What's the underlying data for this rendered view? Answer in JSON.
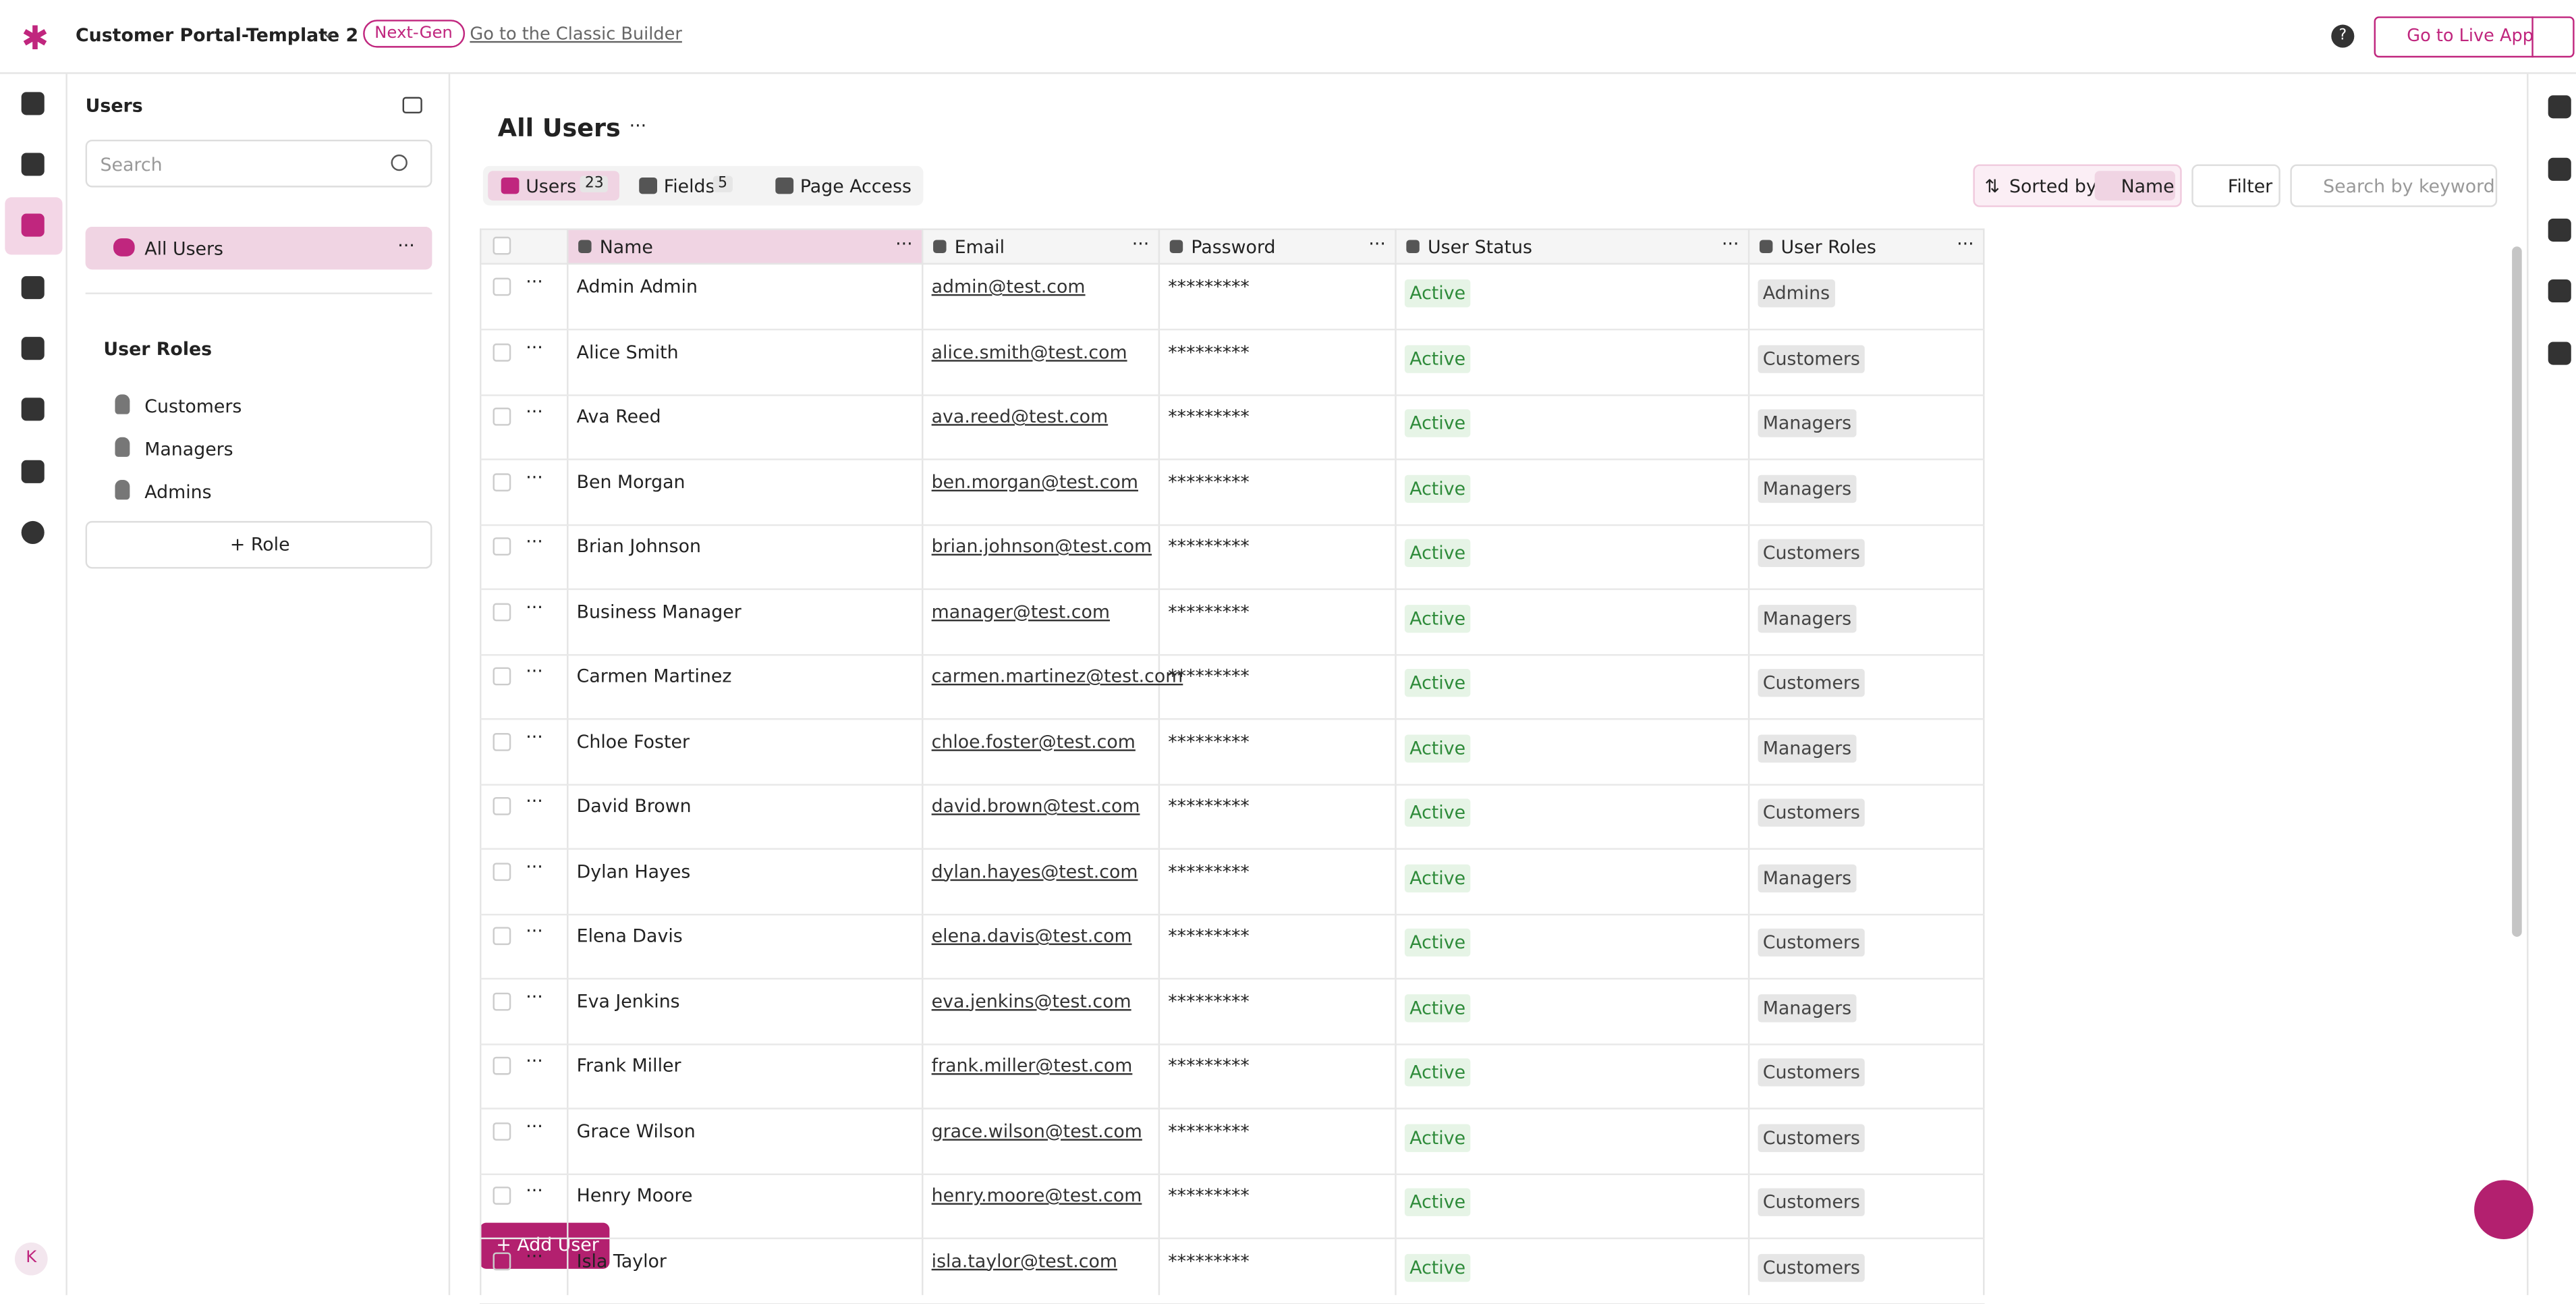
{
  "header": {
    "app_name": "Customer Portal-Template 2",
    "badge": "Next-Gen",
    "classic_link": "Go to the Classic Builder",
    "live_button": "Go to Live App"
  },
  "sidebar": {
    "title": "Users",
    "search_placeholder": "Search",
    "all_users": "All Users",
    "roles_title": "User Roles",
    "roles": [
      "Customers",
      "Managers",
      "Admins"
    ],
    "add_role": "Role",
    "avatar": "K"
  },
  "main": {
    "title": "All Users",
    "tabs": [
      {
        "label": "Users",
        "count": "23"
      },
      {
        "label": "Fields",
        "count": "5"
      },
      {
        "label": "Page Access"
      }
    ],
    "sorted_by": "Sorted by",
    "sort_field": "Name",
    "filter": "Filter",
    "keyword_placeholder": "Search by keyword",
    "add_user": "Add User"
  },
  "table": {
    "columns": [
      "Name",
      "Email",
      "Password",
      "User Status",
      "User Roles"
    ],
    "rows": [
      [
        "Admin Admin",
        "admin@test.com",
        "*********",
        "Active",
        "Admins"
      ],
      [
        "Alice Smith",
        "alice.smith@test.com",
        "*********",
        "Active",
        "Customers"
      ],
      [
        "Ava Reed",
        "ava.reed@test.com",
        "*********",
        "Active",
        "Managers"
      ],
      [
        "Ben Morgan",
        "ben.morgan@test.com",
        "*********",
        "Active",
        "Managers"
      ],
      [
        "Brian Johnson",
        "brian.johnson@test.com",
        "*********",
        "Active",
        "Customers"
      ],
      [
        "Business Manager",
        "manager@test.com",
        "*********",
        "Active",
        "Managers"
      ],
      [
        "Carmen Martinez",
        "carmen.martinez@test.com",
        "*********",
        "Active",
        "Customers"
      ],
      [
        "Chloe Foster",
        "chloe.foster@test.com",
        "*********",
        "Active",
        "Managers"
      ],
      [
        "David Brown",
        "david.brown@test.com",
        "*********",
        "Active",
        "Customers"
      ],
      [
        "Dylan Hayes",
        "dylan.hayes@test.com",
        "*********",
        "Active",
        "Managers"
      ],
      [
        "Elena Davis",
        "elena.davis@test.com",
        "*********",
        "Active",
        "Customers"
      ],
      [
        "Eva Jenkins",
        "eva.jenkins@test.com",
        "*********",
        "Active",
        "Managers"
      ],
      [
        "Frank Miller",
        "frank.miller@test.com",
        "*********",
        "Active",
        "Customers"
      ],
      [
        "Grace Wilson",
        "grace.wilson@test.com",
        "*********",
        "Active",
        "Customers"
      ],
      [
        "Henry Moore",
        "henry.moore@test.com",
        "*********",
        "Active",
        "Customers"
      ],
      [
        "Isla Taylor",
        "isla.taylor@test.com",
        "*********",
        "Active",
        "Customers"
      ]
    ]
  }
}
